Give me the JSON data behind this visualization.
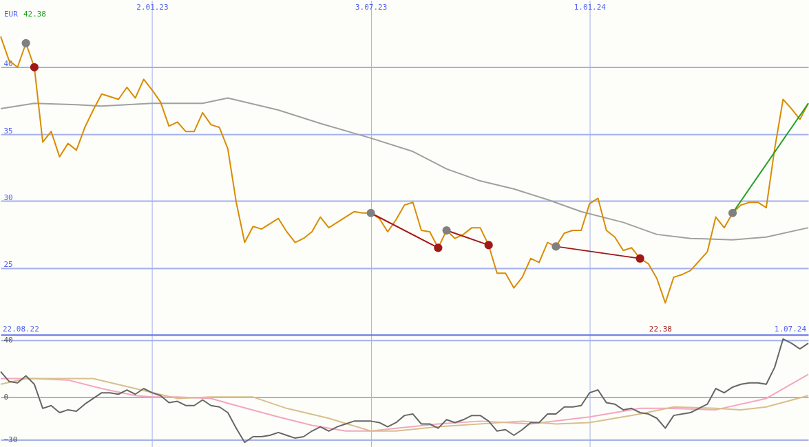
{
  "chart_data": [
    {
      "type": "line",
      "x": [
        "2022-08-29",
        "2022-09-05",
        "2022-09-12",
        "2022-09-19",
        "2022-09-26",
        "2022-10-03",
        "2022-10-10",
        "2022-10-17",
        "2022-10-24",
        "2022-10-31",
        "2022-11-07",
        "2022-11-14",
        "2022-11-21",
        "2022-11-28",
        "2022-12-05",
        "2022-12-12",
        "2022-12-19",
        "2022-12-26",
        "2023-01-02",
        "2023-01-09",
        "2023-01-16",
        "2023-01-23",
        "2023-01-30",
        "2023-02-06",
        "2023-02-13",
        "2023-02-20",
        "2023-02-27",
        "2023-03-06",
        "2023-03-13",
        "2023-03-20",
        "2023-03-27",
        "2023-04-03",
        "2023-04-10",
        "2023-04-17",
        "2023-04-24",
        "2023-05-01",
        "2023-05-08",
        "2023-05-15",
        "2023-05-22",
        "2023-05-29",
        "2023-06-05",
        "2023-06-12",
        "2023-06-19",
        "2023-06-26",
        "2023-07-03",
        "2023-07-10",
        "2023-07-17",
        "2023-07-24",
        "2023-07-31",
        "2023-08-07",
        "2023-08-14",
        "2023-08-21",
        "2023-08-28",
        "2023-09-04",
        "2023-09-11",
        "2023-09-18",
        "2023-09-25",
        "2023-10-02",
        "2023-10-09",
        "2023-10-16",
        "2023-10-23",
        "2023-10-30",
        "2023-11-06",
        "2023-11-13",
        "2023-11-20",
        "2023-11-27",
        "2023-12-04",
        "2023-12-11",
        "2023-12-18",
        "2023-12-25",
        "2024-01-01",
        "2024-01-08",
        "2024-01-15",
        "2024-01-22",
        "2024-01-29",
        "2024-02-05",
        "2024-02-12",
        "2024-02-19",
        "2024-02-26",
        "2024-03-04",
        "2024-03-11",
        "2024-03-18",
        "2024-03-25",
        "2024-04-01",
        "2024-04-08",
        "2024-04-15",
        "2024-04-22",
        "2024-04-29",
        "2024-05-06",
        "2024-05-13",
        "2024-05-20",
        "2024-05-27",
        "2024-06-03",
        "2024-06-10",
        "2024-06-17",
        "2024-06-24",
        "2024-07-01"
      ],
      "xlim": [
        "2022-08-29",
        "2024-07-01"
      ],
      "xticks": [
        {
          "value": "2023-01-02",
          "label": "2.01.23"
        },
        {
          "value": "2023-07-03",
          "label": "3.07.23"
        },
        {
          "value": "2024-01-01",
          "label": "1.01.24"
        }
      ],
      "ylim": [
        20,
        45
      ],
      "yticks": [
        25,
        30,
        35,
        40
      ],
      "grid": true,
      "series": [
        {
          "color": "#a0a0a0",
          "x": [
            "2022-08-29",
            "2022-09-26",
            "2022-10-31",
            "2022-11-21",
            "2023-01-02",
            "2023-02-13",
            "2023-03-06",
            "2023-04-17",
            "2023-05-22",
            "2023-07-03",
            "2023-08-07",
            "2023-09-04",
            "2023-10-02",
            "2023-10-30",
            "2023-11-27",
            "2023-12-25",
            "2024-01-29",
            "2024-02-26",
            "2024-03-25",
            "2024-04-29",
            "2024-05-27",
            "2024-07-01"
          ],
          "values": [
            36.9,
            37.3,
            37.2,
            37.1,
            37.3,
            37.3,
            37.7,
            36.8,
            35.8,
            34.7,
            33.7,
            32.4,
            31.5,
            30.9,
            30.1,
            29.2,
            28.4,
            27.5,
            27.2,
            27.1,
            27.3,
            28.0
          ]
        },
        {
          "color": "#d98c00",
          "values": [
            42.3,
            40.5,
            40.0,
            41.8,
            40.0,
            34.4,
            35.2,
            33.3,
            34.3,
            33.8,
            35.5,
            36.8,
            38.0,
            37.8,
            37.6,
            38.5,
            37.7,
            39.1,
            38.3,
            37.4,
            35.6,
            35.9,
            35.2,
            35.2,
            36.6,
            35.7,
            35.5,
            33.9,
            29.9,
            26.9,
            28.1,
            27.9,
            28.3,
            28.7,
            27.7,
            26.9,
            27.2,
            27.7,
            28.8,
            28.0,
            28.4,
            28.8,
            29.2,
            29.1,
            29.1,
            28.7,
            27.7,
            28.6,
            29.7,
            29.9,
            27.8,
            27.7,
            26.5,
            27.8,
            27.2,
            27.5,
            28.0,
            28.0,
            26.7,
            24.6,
            24.6,
            23.5,
            24.3,
            25.7,
            25.4,
            26.9,
            26.6,
            27.6,
            27.8,
            27.8,
            29.8,
            30.2,
            27.8,
            27.3,
            26.3,
            26.5,
            25.7,
            25.3,
            24.2,
            22.38,
            24.3,
            24.5,
            24.8,
            25.5,
            26.2,
            28.8,
            28.0,
            29.1,
            29.7,
            29.9,
            29.9,
            29.5,
            33.9,
            37.6,
            36.9,
            36.1,
            37.3
          ]
        },
        {
          "color": "#a01818",
          "x": [
            "2023-07-03",
            "2023-08-28"
          ],
          "values": [
            29.1,
            26.5
          ]
        },
        {
          "color": "#a01818",
          "x": [
            "2023-09-04",
            "2023-10-09"
          ],
          "values": [
            27.8,
            26.7
          ]
        },
        {
          "color": "#a01818",
          "x": [
            "2023-12-04",
            "2024-02-12"
          ],
          "values": [
            26.6,
            25.7
          ]
        },
        {
          "color": "#22a022",
          "x": [
            "2024-04-29",
            "2024-07-01"
          ],
          "values": [
            29.1,
            37.3
          ]
        },
        {
          "type": "scatter",
          "marker": "circle",
          "color": "#808080",
          "x": [
            "2022-09-19",
            "2023-07-03",
            "2023-09-04",
            "2023-12-04",
            "2024-04-29"
          ],
          "values": [
            41.8,
            29.1,
            27.8,
            26.6,
            29.1
          ]
        },
        {
          "type": "scatter",
          "marker": "circle",
          "color": "#a01818",
          "x": [
            "2022-09-26",
            "2023-08-28",
            "2023-10-09",
            "2024-02-12"
          ],
          "values": [
            40.0,
            26.5,
            26.7,
            25.7
          ]
        }
      ],
      "annotations": [
        "EUR",
        "42.38",
        "22.08.22",
        "22.38",
        "1.07.24"
      ]
    },
    {
      "type": "line",
      "x": [
        "2022-08-29",
        "2022-09-05",
        "2022-09-12",
        "2022-09-19",
        "2022-09-26",
        "2022-10-03",
        "2022-10-10",
        "2022-10-17",
        "2022-10-24",
        "2022-10-31",
        "2022-11-07",
        "2022-11-14",
        "2022-11-21",
        "2022-11-28",
        "2022-12-05",
        "2022-12-12",
        "2022-12-19",
        "2022-12-26",
        "2023-01-02",
        "2023-01-09",
        "2023-01-16",
        "2023-01-23",
        "2023-01-30",
        "2023-02-06",
        "2023-02-13",
        "2023-02-20",
        "2023-02-27",
        "2023-03-06",
        "2023-03-13",
        "2023-03-20",
        "2023-03-27",
        "2023-04-03",
        "2023-04-10",
        "2023-04-17",
        "2023-04-24",
        "2023-05-01",
        "2023-05-08",
        "2023-05-15",
        "2023-05-22",
        "2023-05-29",
        "2023-06-05",
        "2023-06-12",
        "2023-06-19",
        "2023-06-26",
        "2023-07-03",
        "2023-07-10",
        "2023-07-17",
        "2023-07-24",
        "2023-07-31",
        "2023-08-07",
        "2023-08-14",
        "2023-08-21",
        "2023-08-28",
        "2023-09-04",
        "2023-09-11",
        "2023-09-18",
        "2023-09-25",
        "2023-10-02",
        "2023-10-09",
        "2023-10-16",
        "2023-10-23",
        "2023-10-30",
        "2023-11-06",
        "2023-11-13",
        "2023-11-20",
        "2023-11-27",
        "2023-12-04",
        "2023-12-11",
        "2023-12-18",
        "2023-12-25",
        "2024-01-01",
        "2024-01-08",
        "2024-01-15",
        "2024-01-22",
        "2024-01-29",
        "2024-02-05",
        "2024-02-12",
        "2024-02-19",
        "2024-02-26",
        "2024-03-04",
        "2024-03-11",
        "2024-03-18",
        "2024-03-25",
        "2024-04-01",
        "2024-04-08",
        "2024-04-15",
        "2024-04-22",
        "2024-04-29",
        "2024-05-06",
        "2024-05-13",
        "2024-05-20",
        "2024-05-27",
        "2024-06-03",
        "2024-06-10",
        "2024-06-17",
        "2024-06-24",
        "2024-07-01"
      ],
      "xlim": [
        "2022-08-29",
        "2024-07-01"
      ],
      "xticks": [
        {
          "value": "2023-01-02",
          "label": null
        },
        {
          "value": "2023-07-03",
          "label": null
        },
        {
          "value": "2024-01-01",
          "label": null
        }
      ],
      "ylim": [
        -35,
        44
      ],
      "yticks": [
        -30,
        0,
        40
      ],
      "grid": true,
      "tick_labels": "y",
      "series": [
        {
          "color": "#f4a6c0",
          "x": [
            "2022-08-29",
            "2022-09-26",
            "2022-10-24",
            "2022-11-21",
            "2022-12-19",
            "2023-01-02",
            "2023-01-23",
            "2023-02-20",
            "2023-03-13",
            "2023-04-17",
            "2023-05-15",
            "2023-06-12",
            "2023-07-03",
            "2023-07-24",
            "2023-08-28",
            "2023-10-02",
            "2023-11-13",
            "2024-01-01",
            "2024-02-12",
            "2024-03-04",
            "2024-04-15",
            "2024-05-27",
            "2024-07-01"
          ],
          "values": [
            13,
            13,
            12,
            6,
            1,
            0,
            0,
            -1,
            -6,
            -14,
            -20,
            -24,
            -24,
            -22,
            -19,
            -17,
            -19,
            -14,
            -8,
            -8,
            -9,
            -1,
            16
          ]
        },
        {
          "color": "#d9bf8c",
          "x": [
            "2022-08-29",
            "2022-09-19",
            "2022-10-24",
            "2022-11-14",
            "2022-12-19",
            "2023-01-23",
            "2023-02-20",
            "2023-03-27",
            "2023-04-24",
            "2023-05-29",
            "2023-07-03",
            "2023-07-24",
            "2023-08-28",
            "2023-11-06",
            "2023-12-04",
            "2024-01-01",
            "2024-02-12",
            "2024-03-11",
            "2024-04-15",
            "2024-05-06",
            "2024-05-27",
            "2024-07-01"
          ],
          "values": [
            9,
            13,
            13,
            13,
            6,
            -1,
            0,
            0,
            -8,
            -15,
            -24,
            -24,
            -21,
            -17,
            -19,
            -18,
            -12,
            -7,
            -8,
            -9,
            -7,
            1
          ]
        },
        {
          "color": "#666666",
          "values": [
            18,
            11,
            10,
            15,
            9,
            -8,
            -6,
            -11,
            -9,
            -10,
            -5,
            -1,
            3,
            3,
            2,
            5,
            2,
            6,
            3,
            1,
            -4,
            -3,
            -6,
            -6,
            -2,
            -6,
            -7,
            -11,
            -22,
            -32,
            -28,
            -28,
            -27,
            -25,
            -27,
            -29,
            -28,
            -24,
            -21,
            -24,
            -21,
            -19,
            -17,
            -17,
            -17,
            -18,
            -21,
            -18,
            -13,
            -12,
            -19,
            -19,
            -22,
            -16,
            -18,
            -16,
            -13,
            -13,
            -17,
            -24,
            -23,
            -27,
            -23,
            -18,
            -18,
            -12,
            -12,
            -7,
            -7,
            -6,
            3,
            5,
            -4,
            -5,
            -9,
            -8,
            -11,
            -12,
            -15,
            -22,
            -13,
            -12,
            -11,
            -8,
            -5,
            6,
            3,
            7,
            9,
            10,
            10,
            9,
            21,
            41,
            38,
            34,
            38
          ]
        }
      ]
    }
  ]
}
